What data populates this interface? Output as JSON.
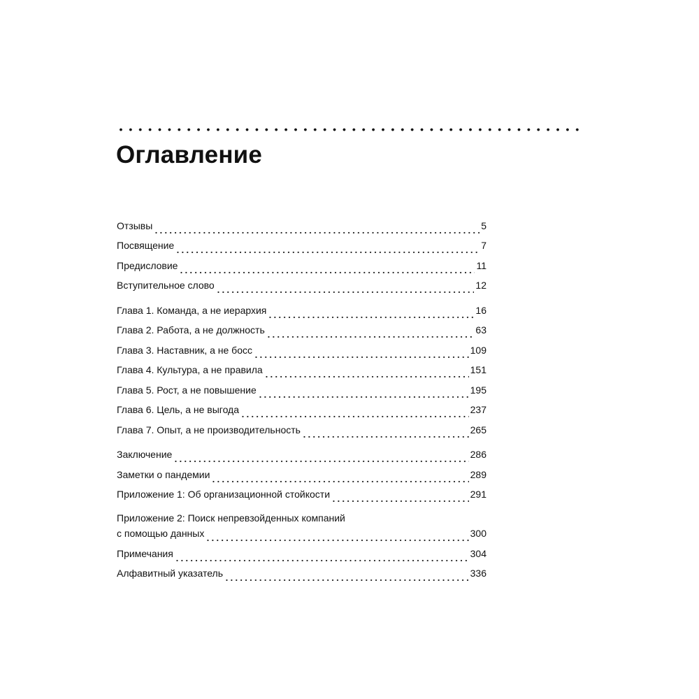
{
  "title": "Оглавление",
  "groups": [
    [
      {
        "label": "Отзывы",
        "page": "5"
      },
      {
        "label": "Посвящение",
        "page": "7"
      },
      {
        "label": "Предисловие",
        "page": "11"
      },
      {
        "label": "Вступительное слово",
        "page": "12"
      }
    ],
    [
      {
        "label": "Глава 1. Команда, а не иерархия",
        "page": "16"
      },
      {
        "label": "Глава 2. Работа, а не должность",
        "page": "63"
      },
      {
        "label": "Глава 3. Наставник, а не босс",
        "page": "109"
      },
      {
        "label": "Глава 4. Культура, а не правила",
        "page": "151"
      },
      {
        "label": "Глава 5. Рост, а не повышение",
        "page": "195"
      },
      {
        "label": "Глава 6. Цель, а не выгода",
        "page": "237"
      },
      {
        "label": "Глава 7. Опыт, а не производительность",
        "page": "265"
      }
    ],
    [
      {
        "label": "Заключение",
        "page": "286"
      },
      {
        "label": "Заметки о пандемии",
        "page": "289"
      },
      {
        "label": "Приложение 1: Об организационной стойкости",
        "page": "291"
      },
      {
        "label": "Приложение 2: Поиск непревзойденных компаний",
        "label_line2": "с помощью данных",
        "page": "300"
      },
      {
        "label": "Примечания",
        "page": "304"
      },
      {
        "label": "Алфавитный указатель",
        "page": "336"
      }
    ]
  ]
}
